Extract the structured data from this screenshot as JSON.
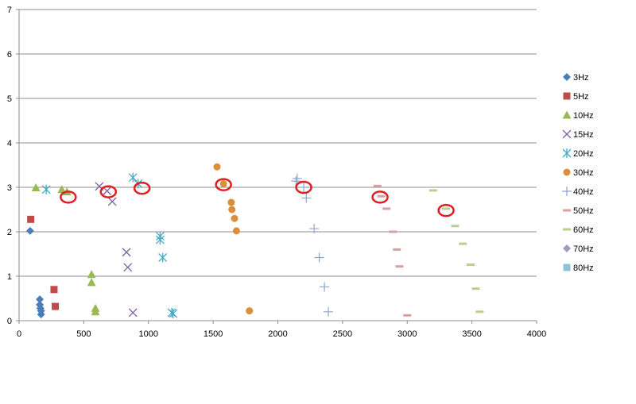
{
  "chart_data": {
    "type": "scatter",
    "title": "",
    "xlabel": "",
    "ylabel": "",
    "xlim": [
      0,
      4000
    ],
    "ylim": [
      0,
      7
    ],
    "xticks": [
      "0",
      "500",
      "1000",
      "1500",
      "2000",
      "2500",
      "3000",
      "3500",
      "4000"
    ],
    "yticks": [
      "0",
      "1",
      "2",
      "3",
      "4",
      "5",
      "6",
      "7"
    ],
    "grid": "horizontal",
    "legend_position": "right",
    "series": [
      {
        "name": "3Hz",
        "marker": "diamond",
        "color": "#4a7ebb",
        "points": [
          [
            85,
            2.02
          ],
          [
            160,
            0.48
          ],
          [
            160,
            0.36
          ],
          [
            165,
            0.28
          ],
          [
            170,
            0.22
          ],
          [
            170,
            0.14
          ]
        ]
      },
      {
        "name": "5Hz",
        "marker": "square",
        "color": "#be4b48",
        "points": [
          [
            90,
            2.28
          ],
          [
            270,
            0.7
          ],
          [
            280,
            0.32
          ]
        ]
      },
      {
        "name": "10Hz",
        "marker": "triangle",
        "color": "#98b954",
        "points": [
          [
            130,
            2.99
          ],
          [
            330,
            2.95
          ],
          [
            370,
            2.9
          ],
          [
            560,
            1.04
          ],
          [
            560,
            0.86
          ],
          [
            590,
            0.28
          ],
          [
            590,
            0.2
          ]
        ]
      },
      {
        "name": "15Hz",
        "marker": "x",
        "color": "#7d60a0",
        "points": [
          [
            620,
            3.02
          ],
          [
            680,
            2.92
          ],
          [
            720,
            2.68
          ],
          [
            830,
            1.54
          ],
          [
            840,
            1.2
          ],
          [
            880,
            0.18
          ]
        ]
      },
      {
        "name": "20Hz",
        "marker": "star",
        "color": "#46aac5",
        "points": [
          [
            210,
            2.95
          ],
          [
            880,
            3.22
          ],
          [
            920,
            3.08
          ],
          [
            1090,
            1.9
          ],
          [
            1090,
            1.82
          ],
          [
            1110,
            1.42
          ],
          [
            1180,
            0.18
          ],
          [
            1190,
            0.16
          ]
        ]
      },
      {
        "name": "30Hz",
        "marker": "circle",
        "color": "#dd8e3c",
        "points": [
          [
            1530,
            3.46
          ],
          [
            1580,
            3.08
          ],
          [
            1640,
            2.66
          ],
          [
            1645,
            2.5
          ],
          [
            1665,
            2.3
          ],
          [
            1680,
            2.02
          ],
          [
            1780,
            0.22
          ]
        ]
      },
      {
        "name": "40Hz",
        "marker": "plus",
        "color": "#8ea5cb",
        "points": [
          [
            2140,
            3.14
          ],
          [
            2150,
            3.2
          ],
          [
            2200,
            3.0
          ],
          [
            2220,
            2.76
          ],
          [
            2280,
            2.07
          ],
          [
            2320,
            1.42
          ],
          [
            2360,
            0.76
          ],
          [
            2390,
            0.2
          ]
        ]
      },
      {
        "name": "50Hz",
        "marker": "dash",
        "color": "#d8a0a0",
        "points": [
          [
            2770,
            3.03
          ],
          [
            2800,
            2.8
          ],
          [
            2840,
            2.52
          ],
          [
            2890,
            2.0
          ],
          [
            2920,
            1.6
          ],
          [
            2940,
            1.22
          ],
          [
            3000,
            0.12
          ]
        ]
      },
      {
        "name": "60Hz",
        "marker": "dash",
        "color": "#b8d08e",
        "points": [
          [
            3200,
            2.93
          ],
          [
            3300,
            2.52
          ],
          [
            3370,
            2.13
          ],
          [
            3430,
            1.73
          ],
          [
            3490,
            1.26
          ],
          [
            3530,
            0.72
          ],
          [
            3560,
            0.2
          ]
        ]
      },
      {
        "name": "70Hz",
        "marker": "diamond",
        "color": "#a598bf",
        "points": []
      },
      {
        "name": "80Hz",
        "marker": "square",
        "color": "#8ec2d8",
        "points": []
      }
    ],
    "annotations": {
      "type": "red-ellipse-highlights",
      "color": "#e02020",
      "points": [
        [
          380,
          2.78
        ],
        [
          690,
          2.9
        ],
        [
          950,
          2.98
        ],
        [
          1580,
          3.06
        ],
        [
          2200,
          3.0
        ],
        [
          2790,
          2.78
        ],
        [
          3300,
          2.48
        ]
      ]
    }
  }
}
